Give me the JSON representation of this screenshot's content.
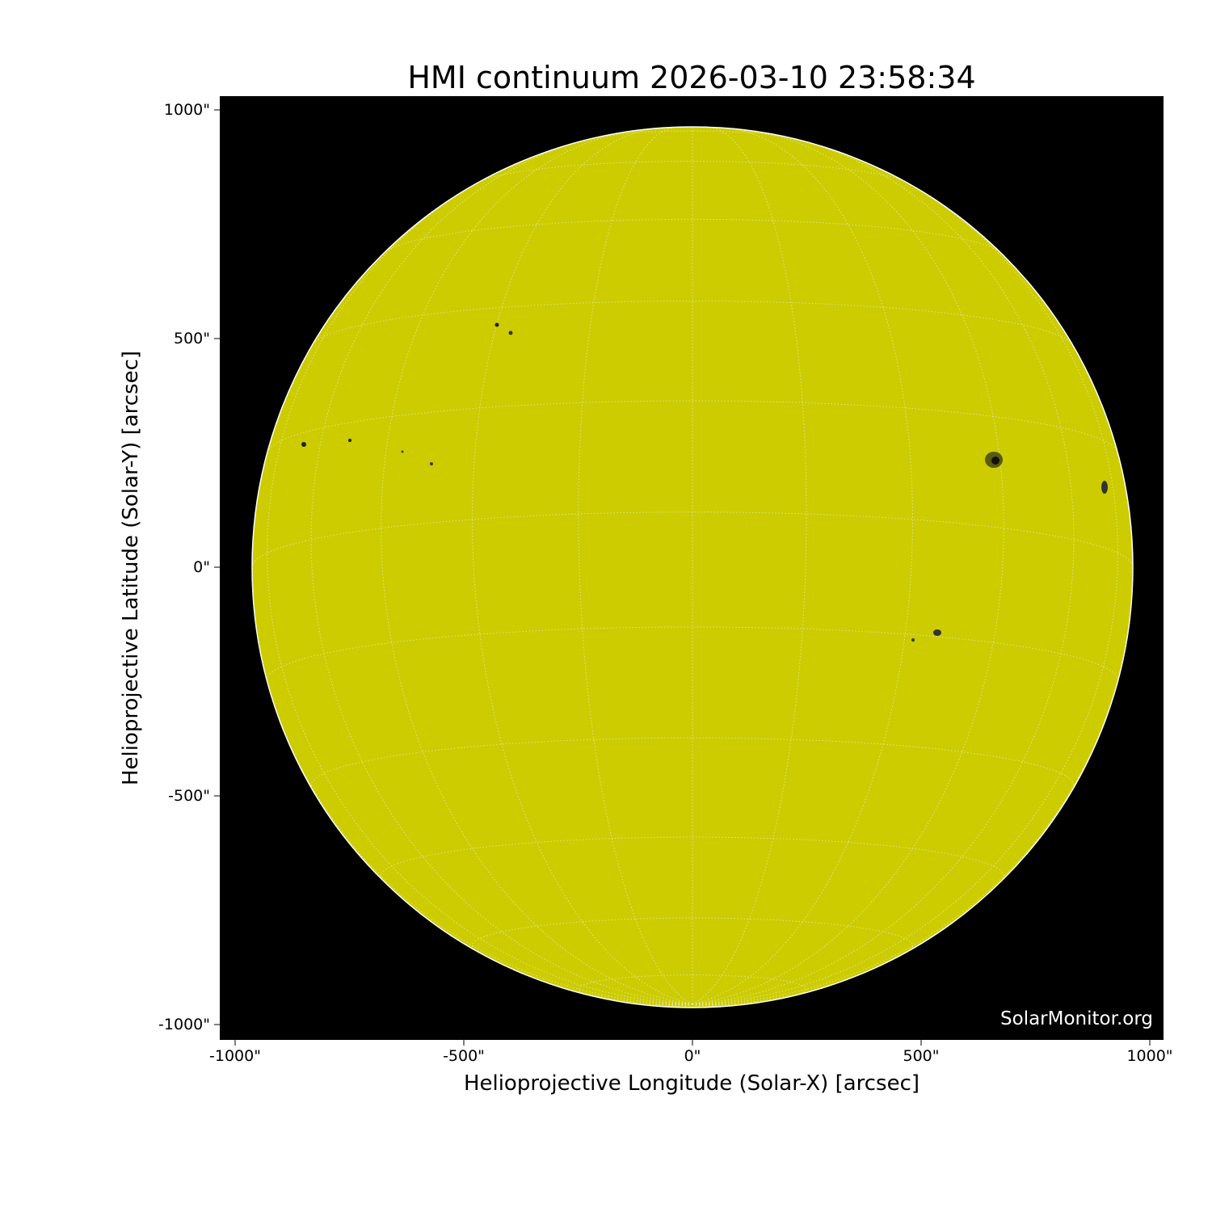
{
  "title": "HMI continuum 2026-03-10 23:58:34",
  "x_axis": {
    "label": "Helioprojective Longitude (Solar-X) [arcsec]",
    "ticks": [
      "-1000\"",
      "-500\"",
      "0\"",
      "500\"",
      "1000\""
    ],
    "range": [
      -1033,
      1033
    ]
  },
  "y_axis": {
    "label": "Helioprojective Latitude (Solar-Y) [arcsec]",
    "ticks": [
      "1000\"",
      "500\"",
      "0\"",
      "-500\"",
      "-1000\""
    ],
    "range": [
      -1033,
      1033
    ]
  },
  "watermark": "SolarMonitor.org",
  "grid": {
    "on": true,
    "spacing_deg": 15,
    "style": "dotted white"
  },
  "colors": {
    "disk": "#cccc00",
    "background": "#000000",
    "grid": "#e8e8c0"
  }
}
